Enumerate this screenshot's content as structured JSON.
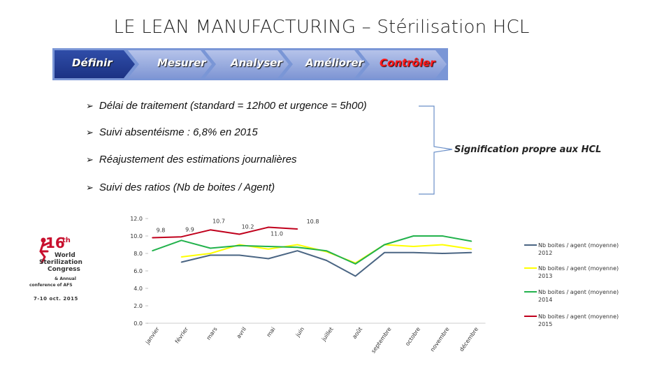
{
  "title": "LE LEAN MANUFACTURING – Stérilisation HCL",
  "steps": [
    "Définir",
    "Mesurer",
    "Analyser",
    "Améliorer",
    "Contrôler"
  ],
  "active_step": "Contrôler",
  "bullets": [
    "Délai de traitement (standard = 12h00 et urgence = 5h00)",
    "Suivi absentéisme : 6,8% en 2015",
    "Réajustement des estimations journalières",
    "Suivi des ratios (Nb de boites / Agent)"
  ],
  "bullet_marker": "➢",
  "hcl_note": "Signification propre aux HCL",
  "logo": {
    "num": "16",
    "sup": "th",
    "l1": "World",
    "l2": "Sterilization",
    "l3": "Congress",
    "l4": "& Annual",
    "l5": "conference of AFS",
    "l6": "7-10 oct. 2015"
  },
  "chart_data": {
    "type": "line",
    "categories": [
      "janvier",
      "février",
      "mars",
      "avril",
      "mai",
      "juin",
      "juillet",
      "août",
      "septembre",
      "octobre",
      "novembre",
      "décembre"
    ],
    "ylim": [
      0,
      12
    ],
    "yticks": [
      "0.0",
      "2.0",
      "4.0",
      "6.0",
      "8.0",
      "10.0",
      "12.0"
    ],
    "series": [
      {
        "name": "Nb boites / agent (moyenne) 2012",
        "color": "#4a6583",
        "values": [
          null,
          7.0,
          7.8,
          7.8,
          7.4,
          8.3,
          7.2,
          5.4,
          8.1,
          8.1,
          8.0,
          8.1
        ]
      },
      {
        "name": "Nb boites / agent (moyenne) 2013",
        "color": "#ffff00",
        "values": [
          null,
          7.6,
          8.0,
          9.0,
          8.5,
          9.0,
          8.2,
          6.9,
          9.0,
          8.8,
          9.0,
          8.5
        ]
      },
      {
        "name": "Nb boites / agent (moyenne) 2014",
        "color": "#22b24c",
        "values": [
          8.3,
          9.5,
          8.6,
          8.9,
          8.8,
          8.7,
          8.3,
          6.8,
          9.0,
          10.0,
          10.0,
          9.4
        ]
      },
      {
        "name": "Nb boites / agent (moyenne) 2015",
        "color": "#c0001c",
        "values": [
          9.8,
          9.9,
          10.7,
          10.2,
          11.0,
          10.8,
          null,
          null,
          null,
          null,
          null,
          null
        ]
      }
    ],
    "data_labels": [
      "9.8",
      "9.9",
      "10.7",
      "10.2",
      "11.0",
      "10.8"
    ]
  }
}
